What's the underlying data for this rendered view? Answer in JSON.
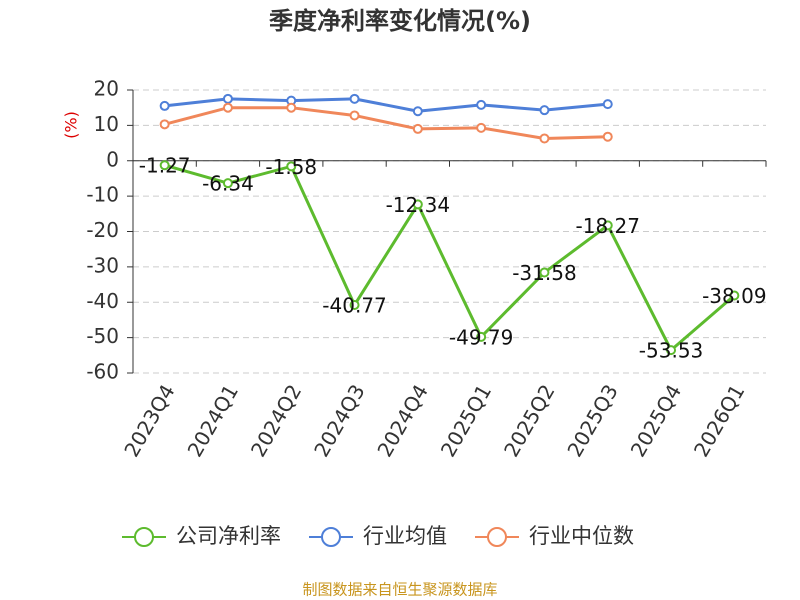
{
  "chart_data": {
    "type": "line",
    "title": "季度净利率变化情况(%)",
    "y_label": "(%)",
    "categories": [
      "2023Q4",
      "2024Q1",
      "2024Q2",
      "2024Q3",
      "2024Q4",
      "2025Q1",
      "2025Q2",
      "2025Q3",
      "2025Q4",
      "2026Q1"
    ],
    "series": [
      {
        "name": "公司净利率",
        "color": "#5dbb2e",
        "values": [
          -1.27,
          -6.34,
          -1.58,
          -40.77,
          -12.34,
          -49.79,
          -31.58,
          -18.27,
          -53.53,
          -38.09
        ],
        "data_labels": true
      },
      {
        "name": "行业均值",
        "color": "#4e7fd8",
        "values": [
          15.5,
          17.5,
          17,
          17.5,
          14,
          15.8,
          14.3,
          16,
          null,
          null
        ]
      },
      {
        "name": "行业中位数",
        "color": "#f0875a",
        "values": [
          10.3,
          15,
          15,
          12.8,
          9,
          9.3,
          6.3,
          6.8,
          null,
          null
        ]
      }
    ],
    "ylim": [
      -60,
      20
    ],
    "yticks": [
      -60,
      -50,
      -40,
      -30,
      -20,
      -10,
      0,
      10,
      20
    ],
    "grid": true,
    "source": "制图数据来自恒生聚源数据库"
  }
}
